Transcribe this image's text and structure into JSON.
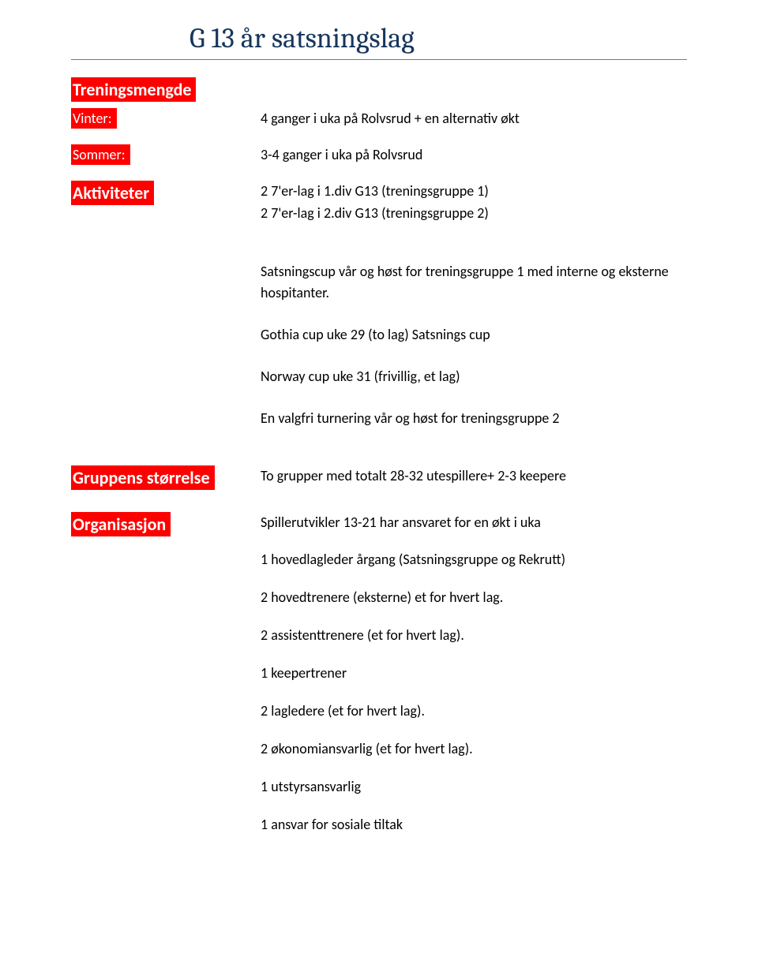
{
  "colors": {
    "title_color": "#17365d",
    "title_rule": "#4f81bd",
    "highlight_bg": "#ff0000",
    "highlight_fg": "#ffffff",
    "body_text": "#000000",
    "page_bg": "#ffffff"
  },
  "title": "G 13 år satsningslag",
  "sections": {
    "treningsmengde": {
      "heading": "Treningsmengde",
      "vinter_label": "Vinter:",
      "vinter_text": "4 ganger i uka på Rolvsrud + en alternativ økt",
      "sommer_label": "Sommer:",
      "sommer_text": "3-4 ganger i uka på Rolvsrud"
    },
    "aktiviteter": {
      "heading": "Aktiviteter",
      "lines": [
        "2 7'er-lag i 1.div G13 (treningsgruppe 1)",
        "2 7'er-lag i 2.div G13 (treningsgruppe 2)"
      ],
      "paras": [
        "Satsningscup vår og høst for treningsgruppe 1 med interne og eksterne hospitanter.",
        "Gothia cup uke 29 (to lag) Satsnings cup",
        "Norway cup uke 31 (frivillig, et lag)",
        "En valgfri turnering vår og høst for treningsgruppe 2"
      ]
    },
    "gruppens": {
      "heading": "Gruppens størrelse",
      "text": "To grupper med totalt 28-32 utespillere+ 2-3 keepere"
    },
    "organisasjon": {
      "heading": "Organisasjon",
      "lines": [
        "Spillerutvikler 13-21 har ansvaret for en økt i uka",
        "1 hovedlagleder årgang (Satsningsgruppe og Rekrutt)",
        "2 hovedtrenere (eksterne) et for hvert lag.",
        "2 assistenttrenere (et for hvert lag).",
        "1 keepertrener",
        "2 lagledere (et for hvert lag).",
        "2 økonomiansvarlig (et for hvert lag).",
        "1 utstyrsansvarlig",
        "1 ansvar for sosiale tiltak"
      ]
    }
  }
}
